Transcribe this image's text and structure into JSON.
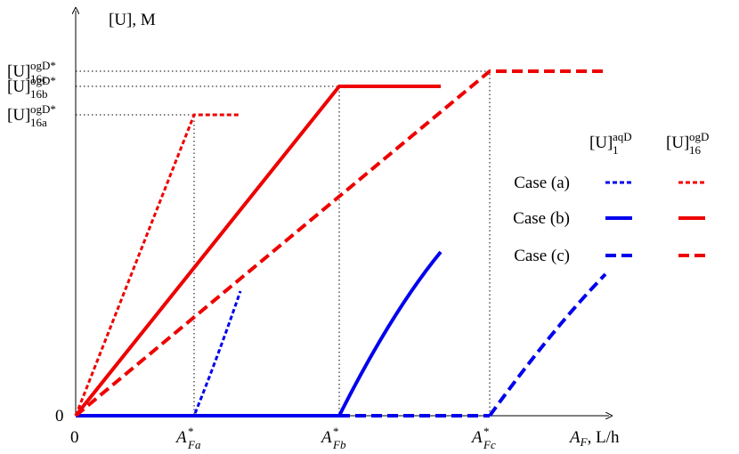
{
  "axes": {
    "y_label": "[U], M",
    "x_label": {
      "base": "A",
      "sub": "F",
      "suffix": ", L/h"
    },
    "y_origin": "0",
    "x_origin": "0"
  },
  "x_ticks": [
    {
      "base": "A",
      "sup": "*",
      "sub": "Fa"
    },
    {
      "base": "A",
      "sup": "*",
      "sub": "Fb"
    },
    {
      "base": "A",
      "sup": "*",
      "sub": "Fc"
    }
  ],
  "y_ticks": [
    {
      "base": "[U]",
      "sup": "ogD*",
      "sub": "16c"
    },
    {
      "base": "[U]",
      "sup": "ogD*",
      "sub": "16b"
    },
    {
      "base": "[U]",
      "sup": "ogD*",
      "sub": "16a"
    }
  ],
  "legend": {
    "headers": [
      {
        "base": "[U]",
        "sup": "aqD",
        "sub": "1"
      },
      {
        "base": "[U]",
        "sup": "ogD",
        "sub": "16"
      }
    ],
    "rows": [
      "Case (a)",
      "Case (b)",
      "Case (c)"
    ]
  }
}
